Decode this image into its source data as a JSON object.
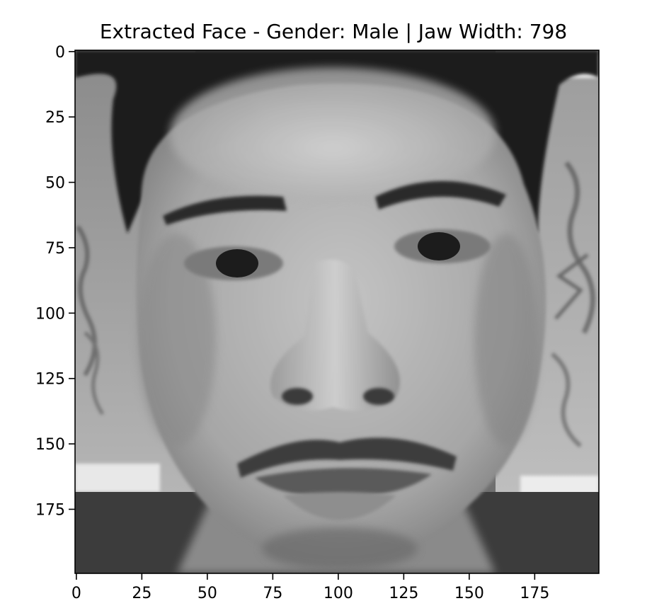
{
  "chart_data": {
    "type": "image",
    "title": "Extracted Face - Gender: Male | Jaw Width: 798",
    "xlabel": "",
    "ylabel": "",
    "xlim": [
      -0.5,
      199.5
    ],
    "ylim": [
      199.5,
      -0.5
    ],
    "y_inverted": true,
    "grid": false,
    "colormap": "gray",
    "image_shape": [
      200,
      200
    ],
    "xticks": [
      0,
      25,
      50,
      75,
      100,
      125,
      150,
      175
    ],
    "yticks": [
      0,
      25,
      50,
      75,
      100,
      125,
      150,
      175
    ],
    "image_content": "grayscale face photograph"
  }
}
